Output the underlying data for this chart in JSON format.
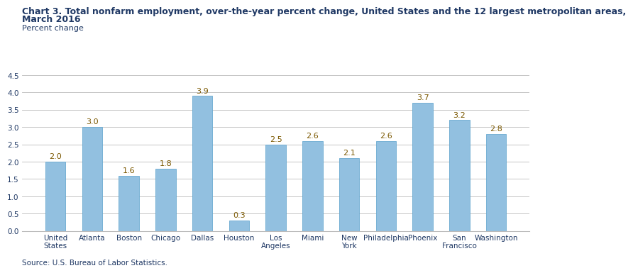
{
  "title_line1": "Chart 3. Total nonfarm employment, over-the-year percent change, United States and the 12 largest metropolitan areas,",
  "title_line2": "March 2016",
  "ylabel_text": "Percent change",
  "source": "Source: U.S. Bureau of Labor Statistics.",
  "categories": [
    "United\nStates",
    "Atlanta",
    "Boston",
    "Chicago",
    "Dallas",
    "Houston",
    "Los\nAngeles",
    "Miami",
    "New\nYork",
    "Philadelphia",
    "Phoenix",
    "San\nFrancisco",
    "Washington"
  ],
  "values": [
    2.0,
    3.0,
    1.6,
    1.8,
    3.9,
    0.3,
    2.5,
    2.6,
    2.1,
    2.6,
    3.7,
    3.2,
    2.8
  ],
  "bar_color": "#92C0E0",
  "bar_edge_color": "#6AAAD0",
  "ylim": [
    0,
    4.5
  ],
  "yticks": [
    0.0,
    0.5,
    1.0,
    1.5,
    2.0,
    2.5,
    3.0,
    3.5,
    4.0,
    4.5
  ],
  "title_color": "#1F3864",
  "label_color": "#7B5800",
  "source_color": "#1F3864",
  "grid_color": "#BBBBBB",
  "title_fontsize": 9,
  "ylabel_fontsize": 8,
  "tick_fontsize": 7.5,
  "label_fontsize": 8,
  "source_fontsize": 7.5,
  "bar_width": 0.55
}
